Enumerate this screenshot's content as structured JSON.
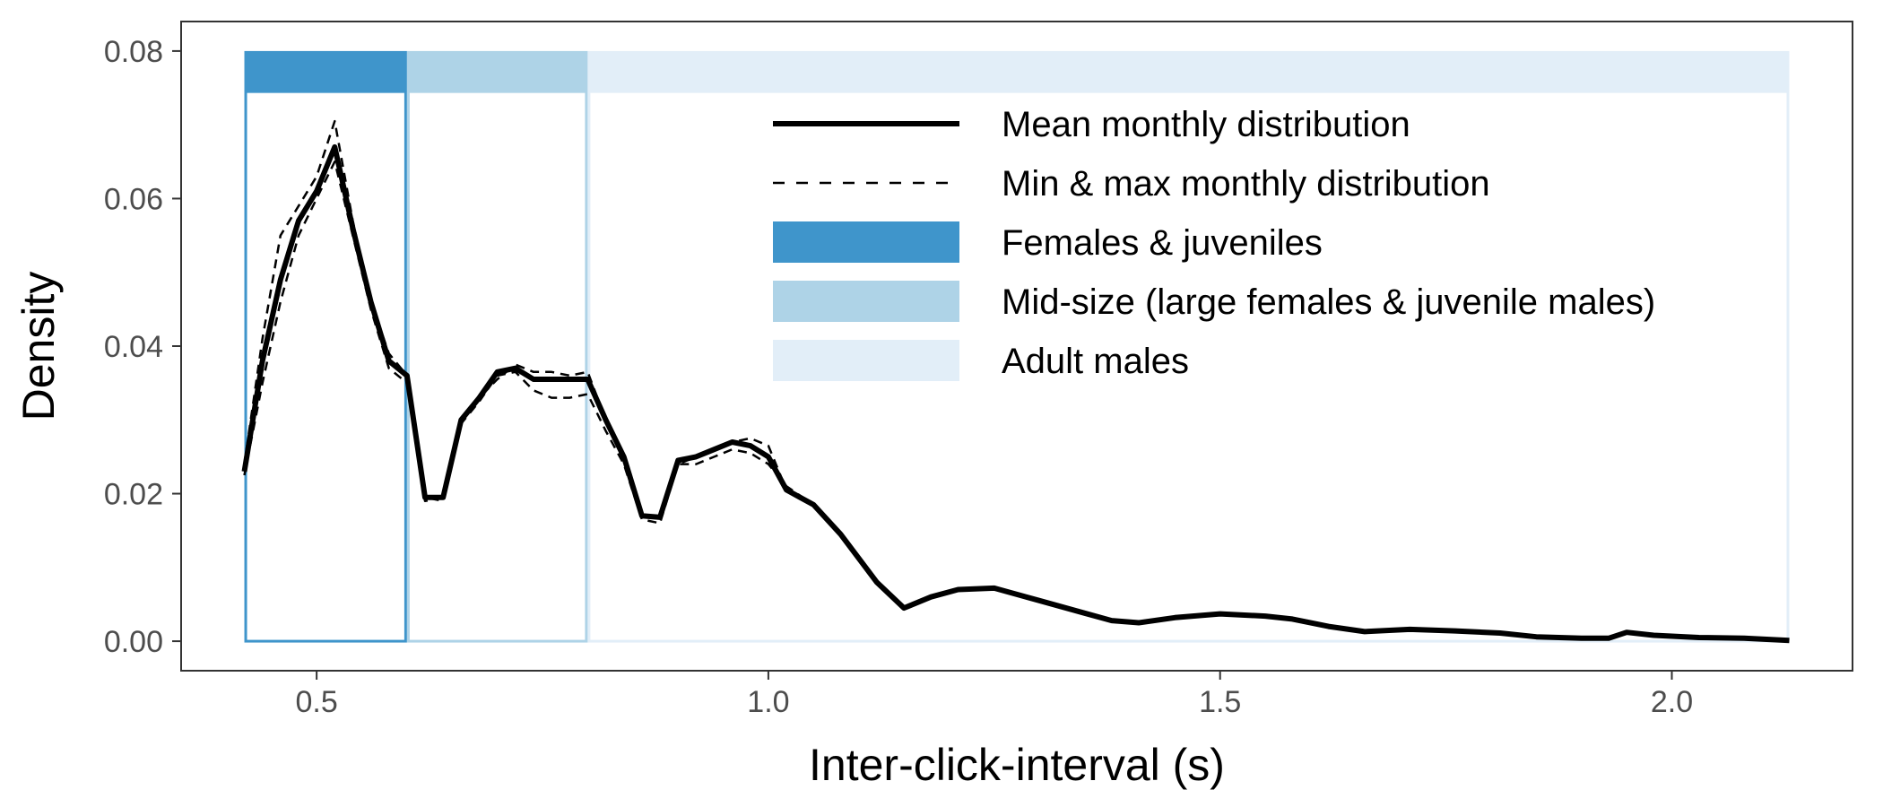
{
  "chart_data": {
    "type": "line",
    "xlabel": "Inter-click-interval (s)",
    "ylabel": "Density",
    "xlim": [
      0.35,
      2.2
    ],
    "ylim": [
      -0.004,
      0.084
    ],
    "x_ticks": [
      0.5,
      1.0,
      1.5,
      2.0
    ],
    "x_tick_labels": [
      "0.5",
      "1.0",
      "1.5",
      "2.0"
    ],
    "y_ticks": [
      0.0,
      0.02,
      0.04,
      0.06,
      0.08
    ],
    "y_tick_labels": [
      "0.00",
      "0.02",
      "0.04",
      "0.06",
      "0.08"
    ],
    "grid": false,
    "legend_position": "top-right",
    "bands": [
      {
        "name": "Females & juveniles",
        "x0": 0.42,
        "x1": 0.6,
        "color": "#3f95cb"
      },
      {
        "name": "Mid-size (large females & juvenile males)",
        "x0": 0.6,
        "x1": 0.8,
        "color": "#aed3e7"
      },
      {
        "name": "Adult males",
        "x0": 0.8,
        "x1": 2.13,
        "color": "#e2eef8"
      }
    ],
    "band_y_top": 0.08,
    "band_cap_bottom": 0.0745,
    "series": [
      {
        "name": "Mean monthly distribution",
        "style": "solid",
        "x": [
          0.42,
          0.44,
          0.46,
          0.48,
          0.5,
          0.52,
          0.54,
          0.56,
          0.58,
          0.6,
          0.62,
          0.64,
          0.66,
          0.68,
          0.7,
          0.72,
          0.74,
          0.76,
          0.78,
          0.8,
          0.82,
          0.84,
          0.86,
          0.88,
          0.9,
          0.92,
          0.94,
          0.96,
          0.98,
          1.0,
          1.02,
          1.05,
          1.08,
          1.12,
          1.15,
          1.18,
          1.21,
          1.25,
          1.3,
          1.35,
          1.38,
          1.41,
          1.45,
          1.5,
          1.55,
          1.58,
          1.62,
          1.66,
          1.71,
          1.76,
          1.81,
          1.85,
          1.9,
          1.93,
          1.95,
          1.98,
          2.03,
          2.08,
          2.13
        ],
        "y": [
          0.023,
          0.038,
          0.049,
          0.057,
          0.061,
          0.067,
          0.056,
          0.046,
          0.038,
          0.036,
          0.0195,
          0.0195,
          0.03,
          0.033,
          0.0365,
          0.037,
          0.0355,
          0.0355,
          0.0355,
          0.0355,
          0.03,
          0.025,
          0.017,
          0.0168,
          0.0245,
          0.025,
          0.026,
          0.027,
          0.0265,
          0.025,
          0.0205,
          0.0185,
          0.0145,
          0.008,
          0.0045,
          0.006,
          0.007,
          0.0072,
          0.0055,
          0.0038,
          0.0028,
          0.0025,
          0.0032,
          0.0037,
          0.0034,
          0.003,
          0.002,
          0.0013,
          0.0016,
          0.0014,
          0.0011,
          0.0006,
          0.0004,
          0.0004,
          0.0012,
          0.0008,
          0.0005,
          0.0004,
          0.0001
        ]
      },
      {
        "name": "Min & max monthly distribution",
        "style": "dashed",
        "x": [
          0.42,
          0.44,
          0.46,
          0.48,
          0.5,
          0.52,
          0.54,
          0.56,
          0.58,
          0.6,
          0.62,
          0.64,
          0.66,
          0.68,
          0.7,
          0.72,
          0.74,
          0.76,
          0.78,
          0.8,
          0.82,
          0.84,
          0.86,
          0.88,
          0.9,
          0.92,
          0.94,
          0.96,
          0.98,
          1.0,
          1.02,
          1.05,
          1.08,
          1.12,
          1.15,
          1.18,
          1.21,
          1.25,
          1.3,
          1.35,
          1.38,
          1.41,
          1.45,
          1.5,
          1.55,
          1.58,
          1.62,
          1.66,
          1.71,
          1.76,
          1.81,
          1.85,
          1.9,
          1.93,
          1.95,
          1.98,
          2.03,
          2.08,
          2.13
        ],
        "y": [
          0.024,
          0.041,
          0.055,
          0.059,
          0.063,
          0.0705,
          0.057,
          0.046,
          0.039,
          0.036,
          0.019,
          0.0195,
          0.03,
          0.033,
          0.0355,
          0.0375,
          0.0365,
          0.0365,
          0.036,
          0.0365,
          0.03,
          0.025,
          0.017,
          0.017,
          0.024,
          0.025,
          0.026,
          0.027,
          0.0275,
          0.0265,
          0.0205,
          0.0185,
          0.0145,
          0.008,
          0.0045,
          0.006,
          0.007,
          0.0072,
          0.0055,
          0.0038,
          0.0028,
          0.0025,
          0.0032,
          0.0037,
          0.0034,
          0.003,
          0.002,
          0.0013,
          0.0016,
          0.0014,
          0.0011,
          0.0006,
          0.0004,
          0.0004,
          0.0012,
          0.0008,
          0.0005,
          0.0004,
          0.0001
        ]
      },
      {
        "name": "Min & max monthly distribution",
        "style": "dashed",
        "x": [
          0.42,
          0.44,
          0.46,
          0.48,
          0.5,
          0.52,
          0.54,
          0.56,
          0.58,
          0.6,
          0.62,
          0.64,
          0.66,
          0.68,
          0.7,
          0.72,
          0.74,
          0.76,
          0.78,
          0.8,
          0.82,
          0.84,
          0.86,
          0.88,
          0.9,
          0.92,
          0.94,
          0.96,
          0.98,
          1.0,
          1.02,
          1.05,
          1.08,
          1.12,
          1.15,
          1.18,
          1.21,
          1.25,
          1.3,
          1.35,
          1.38,
          1.41,
          1.45,
          1.5,
          1.55,
          1.58,
          1.62,
          1.66,
          1.71,
          1.76,
          1.81,
          1.85,
          1.9,
          1.93,
          1.95,
          1.98,
          2.03,
          2.08,
          2.13
        ],
        "y": [
          0.0225,
          0.035,
          0.046,
          0.055,
          0.06,
          0.065,
          0.055,
          0.045,
          0.037,
          0.035,
          0.0195,
          0.019,
          0.0295,
          0.0325,
          0.036,
          0.0365,
          0.034,
          0.033,
          0.033,
          0.0335,
          0.0285,
          0.024,
          0.0165,
          0.016,
          0.024,
          0.024,
          0.025,
          0.026,
          0.0255,
          0.024,
          0.021,
          0.0185,
          0.0145,
          0.008,
          0.0045,
          0.006,
          0.007,
          0.0072,
          0.0055,
          0.0038,
          0.0028,
          0.0025,
          0.0032,
          0.0037,
          0.0034,
          0.003,
          0.002,
          0.0013,
          0.0016,
          0.0014,
          0.0011,
          0.0006,
          0.0004,
          0.0004,
          0.0012,
          0.0008,
          0.0005,
          0.0004,
          0.0001
        ]
      }
    ],
    "legend": [
      {
        "label": "Mean monthly distribution",
        "kind": "line-solid"
      },
      {
        "label": "Min & max monthly distribution",
        "kind": "line-dashed"
      },
      {
        "label": "Females & juveniles",
        "kind": "fill",
        "color": "#3f95cb"
      },
      {
        "label": "Mid-size (large females & juvenile males)",
        "kind": "fill",
        "color": "#aed3e7"
      },
      {
        "label": "Adult males",
        "kind": "fill",
        "color": "#e2eef8"
      }
    ]
  }
}
